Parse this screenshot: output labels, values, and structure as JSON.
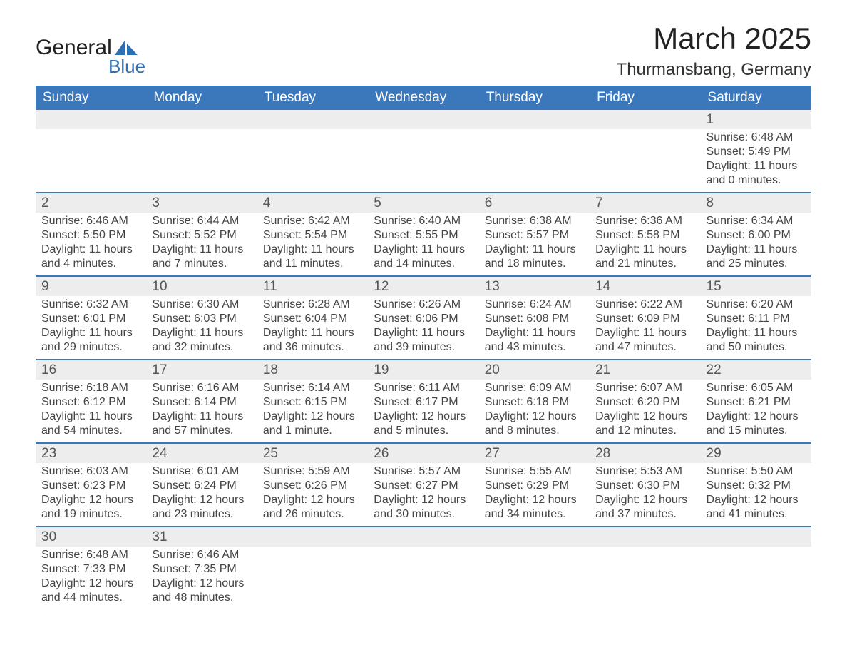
{
  "logo": {
    "word1": "General",
    "word2": "Blue",
    "text_color": "#222222",
    "blue_color": "#2f6fb3"
  },
  "title": "March 2025",
  "location": "Thurmansbang, Germany",
  "header_bg": "#3a78bb",
  "header_text_color": "#ffffff",
  "daynum_bg": "#ededed",
  "row_divider_color": "#3a78bb",
  "body_text_color": "#444444",
  "daynum_text_color": "#555555",
  "font_family": "Arial, Helvetica, sans-serif",
  "day_headers": [
    "Sunday",
    "Monday",
    "Tuesday",
    "Wednesday",
    "Thursday",
    "Friday",
    "Saturday"
  ],
  "weeks": [
    [
      null,
      null,
      null,
      null,
      null,
      null,
      {
        "n": "1",
        "sunrise": "6:48 AM",
        "sunset": "5:49 PM",
        "daylight": "11 hours and 0 minutes."
      }
    ],
    [
      {
        "n": "2",
        "sunrise": "6:46 AM",
        "sunset": "5:50 PM",
        "daylight": "11 hours and 4 minutes."
      },
      {
        "n": "3",
        "sunrise": "6:44 AM",
        "sunset": "5:52 PM",
        "daylight": "11 hours and 7 minutes."
      },
      {
        "n": "4",
        "sunrise": "6:42 AM",
        "sunset": "5:54 PM",
        "daylight": "11 hours and 11 minutes."
      },
      {
        "n": "5",
        "sunrise": "6:40 AM",
        "sunset": "5:55 PM",
        "daylight": "11 hours and 14 minutes."
      },
      {
        "n": "6",
        "sunrise": "6:38 AM",
        "sunset": "5:57 PM",
        "daylight": "11 hours and 18 minutes."
      },
      {
        "n": "7",
        "sunrise": "6:36 AM",
        "sunset": "5:58 PM",
        "daylight": "11 hours and 21 minutes."
      },
      {
        "n": "8",
        "sunrise": "6:34 AM",
        "sunset": "6:00 PM",
        "daylight": "11 hours and 25 minutes."
      }
    ],
    [
      {
        "n": "9",
        "sunrise": "6:32 AM",
        "sunset": "6:01 PM",
        "daylight": "11 hours and 29 minutes."
      },
      {
        "n": "10",
        "sunrise": "6:30 AM",
        "sunset": "6:03 PM",
        "daylight": "11 hours and 32 minutes."
      },
      {
        "n": "11",
        "sunrise": "6:28 AM",
        "sunset": "6:04 PM",
        "daylight": "11 hours and 36 minutes."
      },
      {
        "n": "12",
        "sunrise": "6:26 AM",
        "sunset": "6:06 PM",
        "daylight": "11 hours and 39 minutes."
      },
      {
        "n": "13",
        "sunrise": "6:24 AM",
        "sunset": "6:08 PM",
        "daylight": "11 hours and 43 minutes."
      },
      {
        "n": "14",
        "sunrise": "6:22 AM",
        "sunset": "6:09 PM",
        "daylight": "11 hours and 47 minutes."
      },
      {
        "n": "15",
        "sunrise": "6:20 AM",
        "sunset": "6:11 PM",
        "daylight": "11 hours and 50 minutes."
      }
    ],
    [
      {
        "n": "16",
        "sunrise": "6:18 AM",
        "sunset": "6:12 PM",
        "daylight": "11 hours and 54 minutes."
      },
      {
        "n": "17",
        "sunrise": "6:16 AM",
        "sunset": "6:14 PM",
        "daylight": "11 hours and 57 minutes."
      },
      {
        "n": "18",
        "sunrise": "6:14 AM",
        "sunset": "6:15 PM",
        "daylight": "12 hours and 1 minute."
      },
      {
        "n": "19",
        "sunrise": "6:11 AM",
        "sunset": "6:17 PM",
        "daylight": "12 hours and 5 minutes."
      },
      {
        "n": "20",
        "sunrise": "6:09 AM",
        "sunset": "6:18 PM",
        "daylight": "12 hours and 8 minutes."
      },
      {
        "n": "21",
        "sunrise": "6:07 AM",
        "sunset": "6:20 PM",
        "daylight": "12 hours and 12 minutes."
      },
      {
        "n": "22",
        "sunrise": "6:05 AM",
        "sunset": "6:21 PM",
        "daylight": "12 hours and 15 minutes."
      }
    ],
    [
      {
        "n": "23",
        "sunrise": "6:03 AM",
        "sunset": "6:23 PM",
        "daylight": "12 hours and 19 minutes."
      },
      {
        "n": "24",
        "sunrise": "6:01 AM",
        "sunset": "6:24 PM",
        "daylight": "12 hours and 23 minutes."
      },
      {
        "n": "25",
        "sunrise": "5:59 AM",
        "sunset": "6:26 PM",
        "daylight": "12 hours and 26 minutes."
      },
      {
        "n": "26",
        "sunrise": "5:57 AM",
        "sunset": "6:27 PM",
        "daylight": "12 hours and 30 minutes."
      },
      {
        "n": "27",
        "sunrise": "5:55 AM",
        "sunset": "6:29 PM",
        "daylight": "12 hours and 34 minutes."
      },
      {
        "n": "28",
        "sunrise": "5:53 AM",
        "sunset": "6:30 PM",
        "daylight": "12 hours and 37 minutes."
      },
      {
        "n": "29",
        "sunrise": "5:50 AM",
        "sunset": "6:32 PM",
        "daylight": "12 hours and 41 minutes."
      }
    ],
    [
      {
        "n": "30",
        "sunrise": "6:48 AM",
        "sunset": "7:33 PM",
        "daylight": "12 hours and 44 minutes."
      },
      {
        "n": "31",
        "sunrise": "6:46 AM",
        "sunset": "7:35 PM",
        "daylight": "12 hours and 48 minutes."
      },
      null,
      null,
      null,
      null,
      null
    ]
  ],
  "labels": {
    "sunrise": "Sunrise: ",
    "sunset": "Sunset: ",
    "daylight": "Daylight: "
  }
}
